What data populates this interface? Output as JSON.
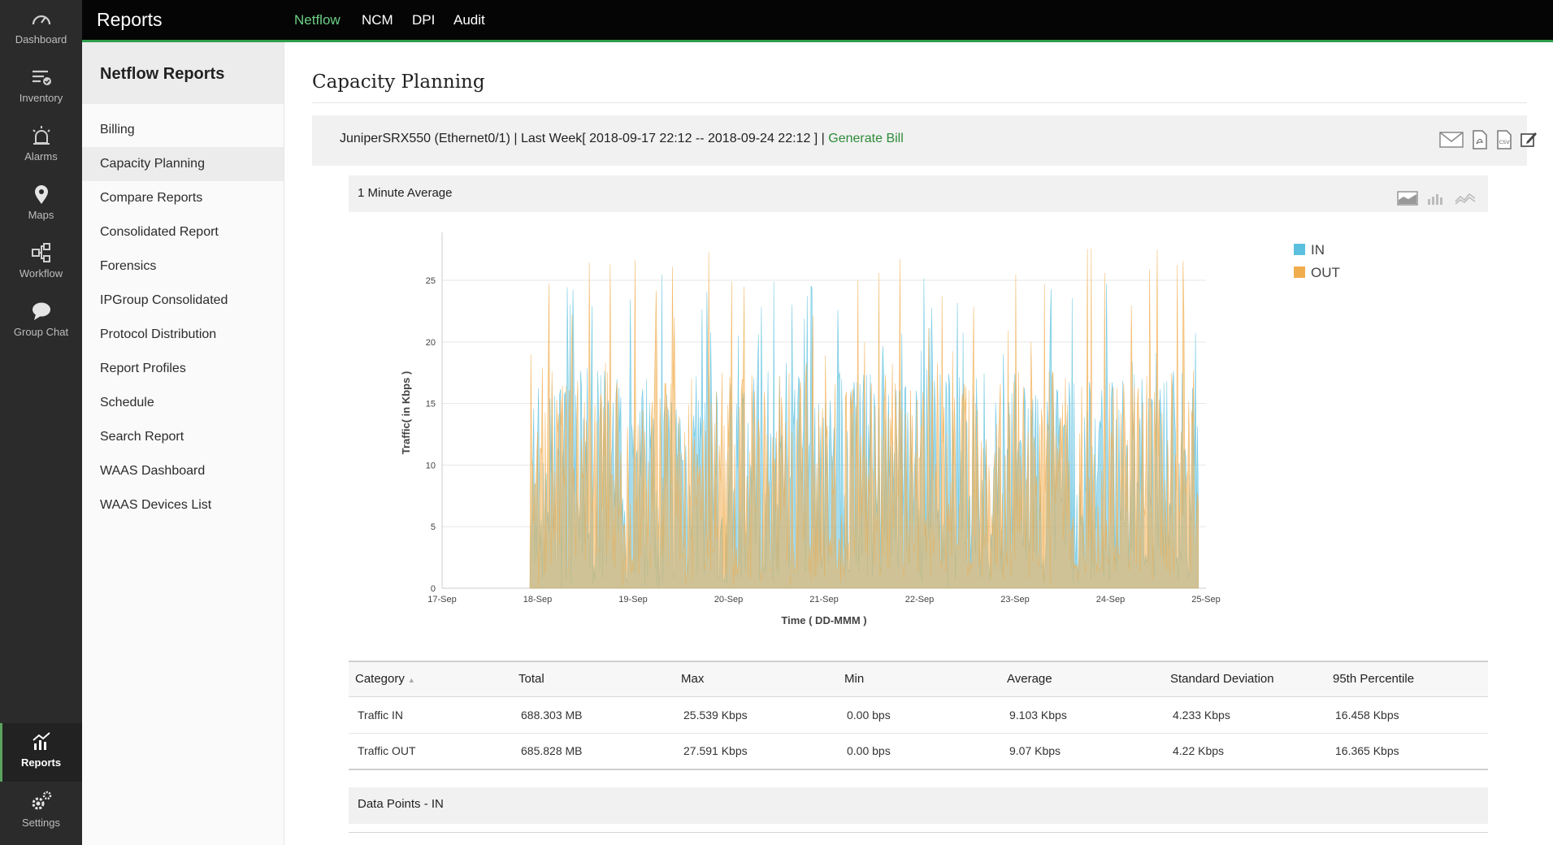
{
  "rail": {
    "items": [
      {
        "label": "Dashboard",
        "icon": "gauge-icon"
      },
      {
        "label": "Inventory",
        "icon": "inventory-icon"
      },
      {
        "label": "Alarms",
        "icon": "alarm-icon"
      },
      {
        "label": "Maps",
        "icon": "map-pin-icon"
      },
      {
        "label": "Workflow",
        "icon": "workflow-icon"
      },
      {
        "label": "Group Chat",
        "icon": "chat-icon"
      }
    ],
    "bottom": [
      {
        "label": "Reports",
        "icon": "reports-chart-icon",
        "active": true
      },
      {
        "label": "Settings",
        "icon": "gear-icon"
      }
    ]
  },
  "topbar": {
    "title": "Reports",
    "tabs": [
      {
        "label": "Netflow",
        "active": true
      },
      {
        "label": "NCM"
      },
      {
        "label": "DPI"
      },
      {
        "label": "Audit"
      }
    ],
    "accent": "#2f9e4d"
  },
  "sidebar": {
    "heading": "Netflow Reports",
    "items": [
      {
        "label": "Billing"
      },
      {
        "label": "Capacity Planning",
        "active": true
      },
      {
        "label": "Compare Reports"
      },
      {
        "label": "Consolidated Report"
      },
      {
        "label": "Forensics"
      },
      {
        "label": "IPGroup Consolidated"
      },
      {
        "label": "Protocol Distribution"
      },
      {
        "label": "Report Profiles"
      },
      {
        "label": "Schedule"
      },
      {
        "label": "Search Report"
      },
      {
        "label": "WAAS Dashboard"
      },
      {
        "label": "WAAS Devices List"
      }
    ]
  },
  "main": {
    "title": "Capacity Planning",
    "report_info": "JuniperSRX550 (Ethernet0/1) | Last Week[ 2018-09-17 22:12 -- 2018-09-24 22:12 ] |",
    "generate_bill": "Generate Bill",
    "header_icons": [
      "email-icon",
      "pdf-icon",
      "csv-icon",
      "edit-icon"
    ],
    "chart_header": "1 Minute Average",
    "chart_type_icons": [
      "area-chart-icon",
      "bar-chart-icon",
      "line-chart-icon"
    ],
    "data_points_header": "Data Points - IN"
  },
  "chart_data": {
    "type": "area",
    "ylabel": "Traffic( in Kbps )",
    "xlabel": "Time ( DD-MMM )",
    "x_ticks": [
      "17-Sep",
      "18-Sep",
      "19-Sep",
      "20-Sep",
      "21-Sep",
      "22-Sep",
      "23-Sep",
      "24-Sep",
      "25-Sep"
    ],
    "y_ticks": [
      0,
      5,
      10,
      15,
      20,
      25
    ],
    "ylim": [
      0,
      28.5
    ],
    "data_range": {
      "start": "2018-09-17 22:12",
      "end": "2018-09-24 22:12"
    },
    "grid": true,
    "legend_position": "top-right",
    "series": [
      {
        "name": "IN",
        "color": "#5bc0de",
        "max": 25.539,
        "min": 0.0,
        "average": 9.103
      },
      {
        "name": "OUT",
        "color": "#f0ad4e",
        "max": 27.591,
        "min": 0.0,
        "average": 9.07
      }
    ]
  },
  "stats_table": {
    "columns": [
      "Category",
      "Total",
      "Max",
      "Min",
      "Average",
      "Standard Deviation",
      "95th Percentile"
    ],
    "rows": [
      [
        "Traffic IN",
        "688.303 MB",
        "25.539 Kbps",
        "0.00 bps",
        "9.103 Kbps",
        "4.233 Kbps",
        "16.458 Kbps"
      ],
      [
        "Traffic OUT",
        "685.828 MB",
        "27.591 Kbps",
        "0.00 bps",
        "9.07 Kbps",
        "4.22 Kbps",
        "16.365 Kbps"
      ]
    ]
  }
}
